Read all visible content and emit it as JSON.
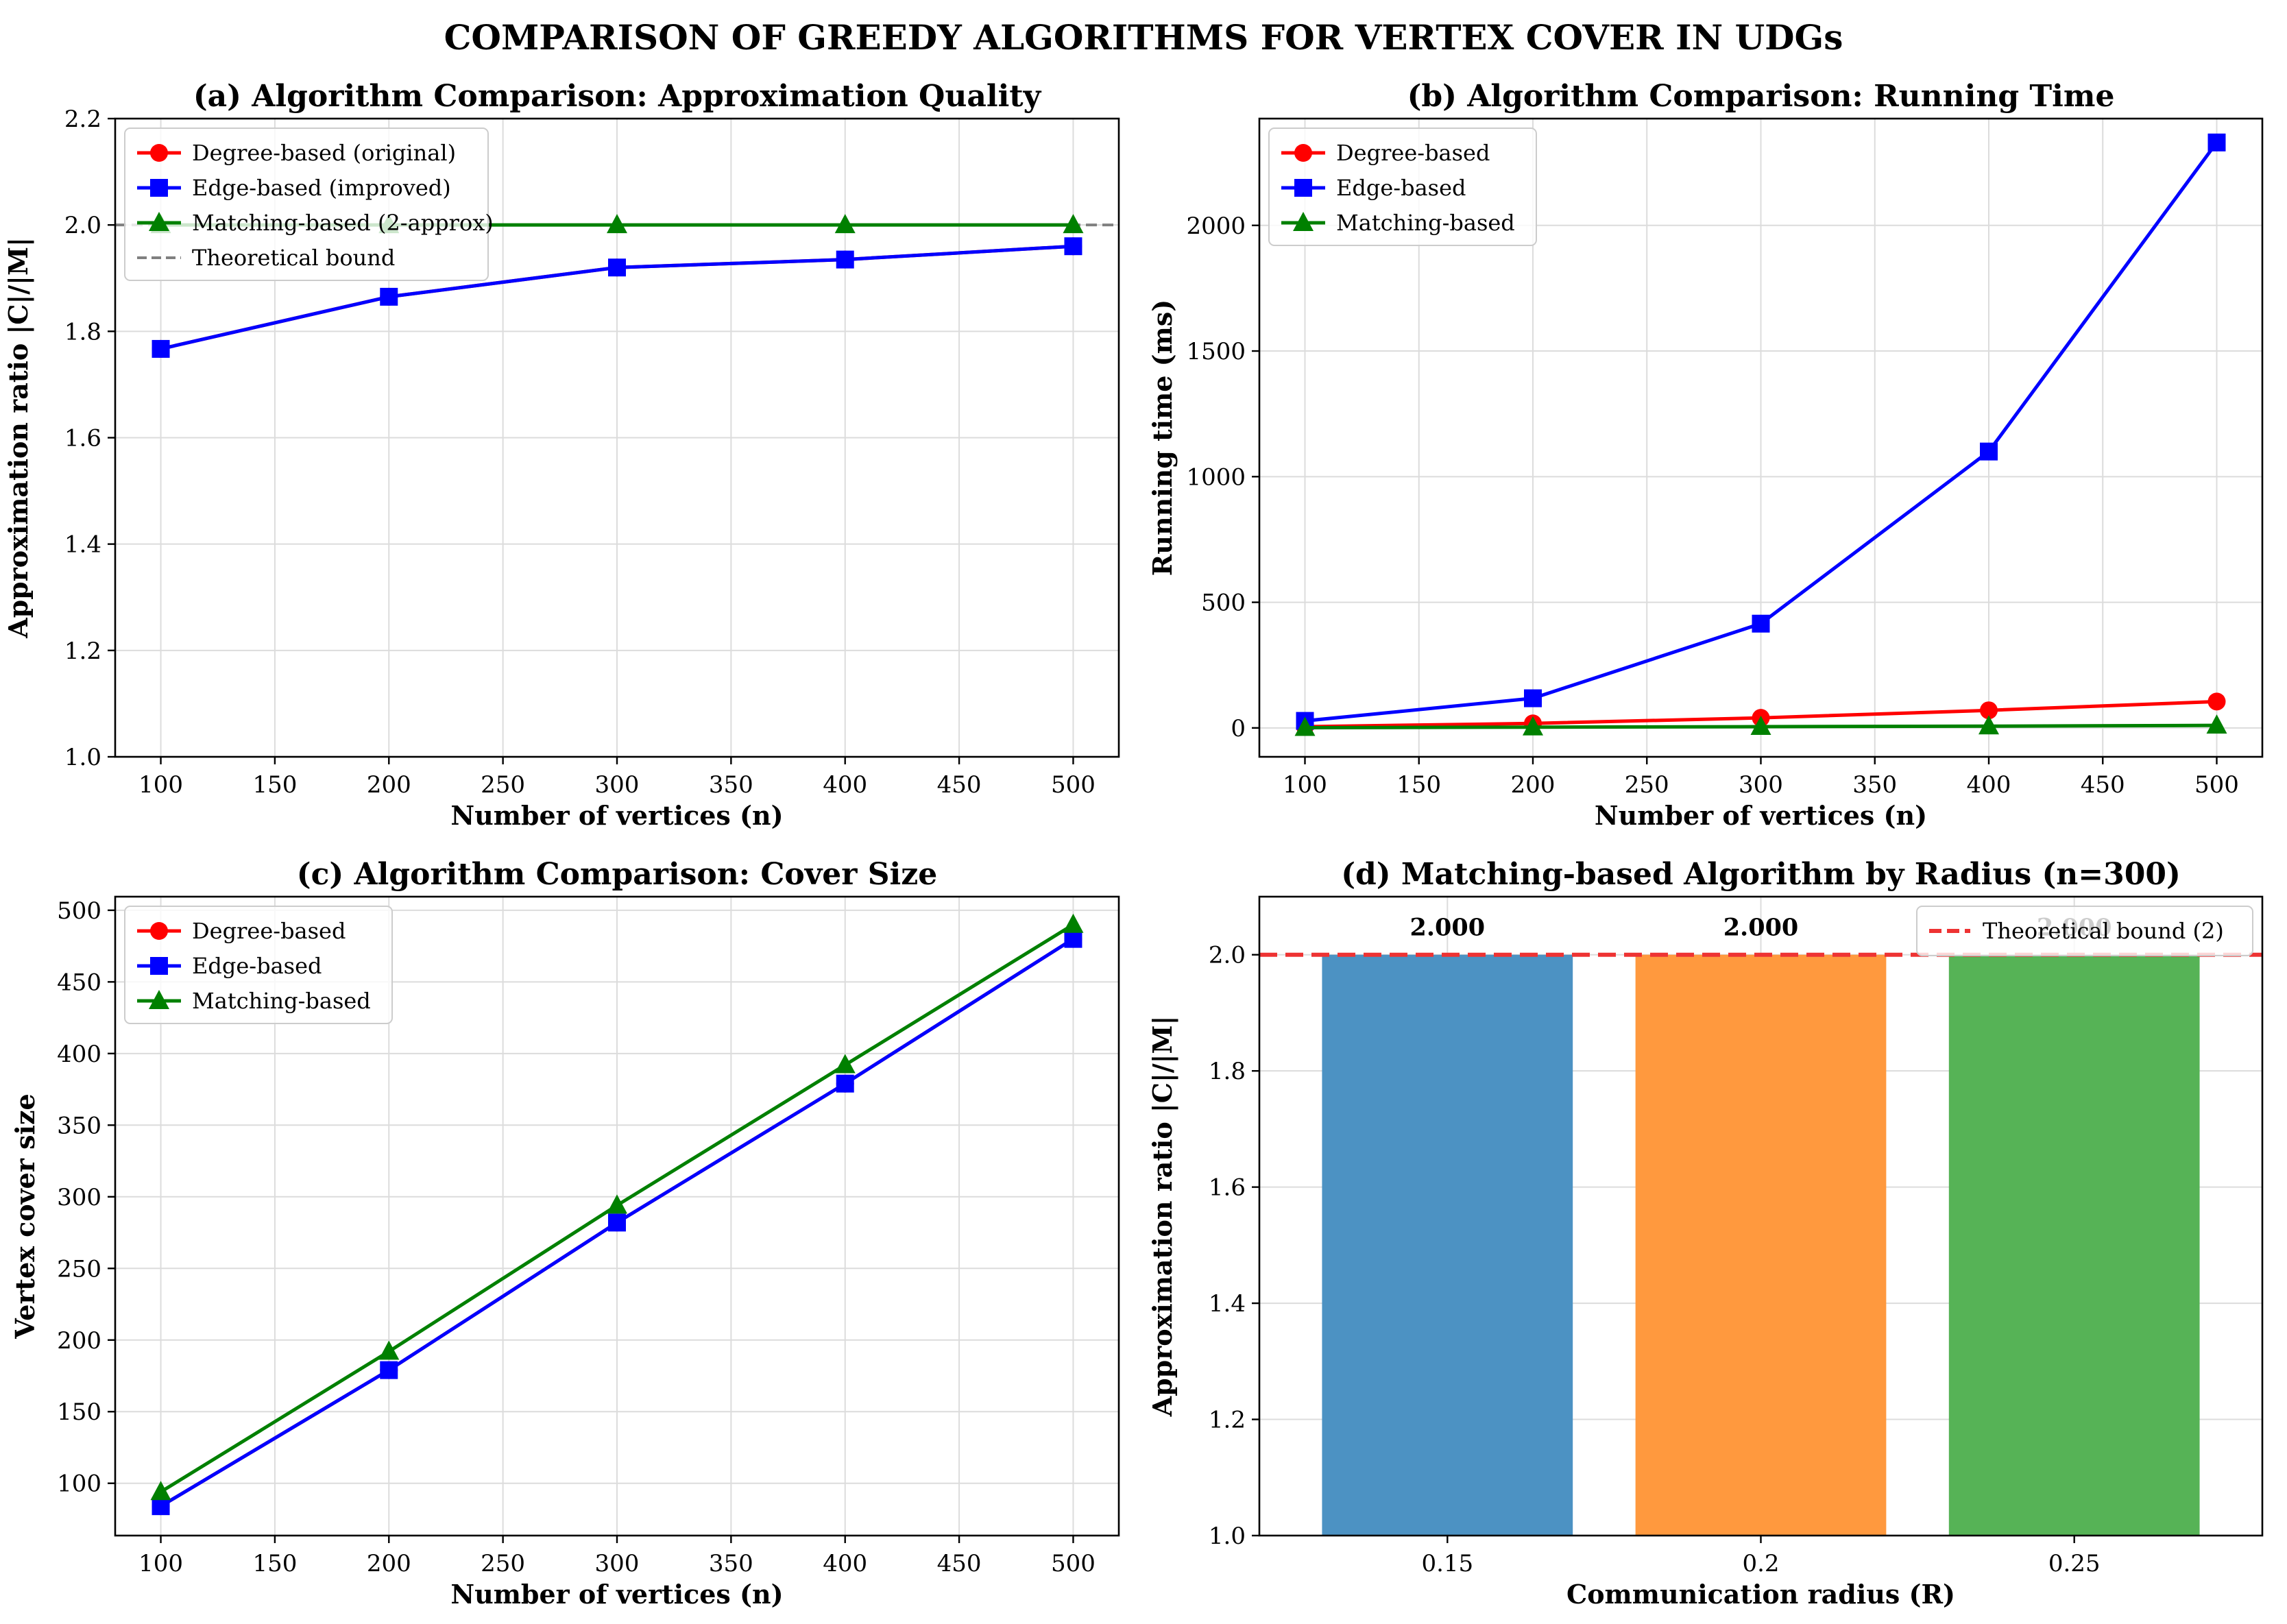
{
  "title": "COMPARISON OF GREEDY ALGORITHMS FOR VERTEX COVER IN UDGs",
  "colors": {
    "degree": "#ff0000",
    "edge": "#0000ff",
    "matching": "#008000",
    "bound": "#808080",
    "bound_red": "#ee3333",
    "bar_blue": "#4c92c3",
    "bar_orange": "#ff993e",
    "bar_green": "#56b356"
  },
  "chart_data": [
    {
      "id": "a",
      "type": "line",
      "title": "(a) Algorithm Comparison: Approximation Quality",
      "xlabel": "Number of vertices (n)",
      "ylabel": "Approximation ratio |C|/|M|",
      "xlim": [
        80,
        520
      ],
      "ylim": [
        1.0,
        2.2
      ],
      "xticks": [
        100,
        150,
        200,
        250,
        300,
        350,
        400,
        450,
        500
      ],
      "yticks": [
        1.0,
        1.2,
        1.4,
        1.6,
        1.8,
        2.0,
        2.2
      ],
      "ytick_labels": [
        "1.0",
        "1.2",
        "1.4",
        "1.6",
        "1.8",
        "2.0",
        "2.2"
      ],
      "grid": true,
      "legend": "upper-left",
      "x": [
        100,
        200,
        300,
        400,
        500
      ],
      "series": [
        {
          "name": "Degree-based (original)",
          "color": "#ff0000",
          "marker": "circle",
          "values": [
            1.767,
            1.865,
            1.92,
            1.935,
            1.96
          ]
        },
        {
          "name": "Edge-based (improved)",
          "color": "#0000ff",
          "marker": "square",
          "values": [
            1.767,
            1.865,
            1.92,
            1.935,
            1.96
          ]
        },
        {
          "name": "Matching-based (2-approx)",
          "color": "#008000",
          "marker": "triangle",
          "values": [
            2.0,
            2.0,
            2.0,
            2.0,
            2.0
          ]
        }
      ],
      "hline": {
        "name": "Theoretical bound",
        "value": 2.0,
        "color": "#808080"
      }
    },
    {
      "id": "b",
      "type": "line",
      "title": "(b) Algorithm Comparison: Running Time",
      "xlabel": "Number of vertices (n)",
      "ylabel": "Running time (ms)",
      "xlim": [
        80,
        520
      ],
      "ylim": [
        -115,
        2425
      ],
      "xticks": [
        100,
        150,
        200,
        250,
        300,
        350,
        400,
        450,
        500
      ],
      "yticks": [
        0,
        500,
        1000,
        1500,
        2000
      ],
      "ytick_labels": [
        "0",
        "500",
        "1000",
        "1500",
        "2000"
      ],
      "grid": true,
      "legend": "upper-left",
      "x": [
        100,
        200,
        300,
        400,
        500
      ],
      "series": [
        {
          "name": "Degree-based",
          "color": "#ff0000",
          "marker": "circle",
          "values": [
            5,
            18,
            40,
            70,
            105
          ]
        },
        {
          "name": "Edge-based",
          "color": "#0000ff",
          "marker": "square",
          "values": [
            28,
            118,
            415,
            1100,
            2330
          ]
        },
        {
          "name": "Matching-based",
          "color": "#008000",
          "marker": "triangle",
          "values": [
            1,
            3,
            5,
            7,
            10
          ]
        }
      ]
    },
    {
      "id": "c",
      "type": "line",
      "title": "(c) Algorithm Comparison: Cover Size",
      "xlabel": "Number of vertices (n)",
      "ylabel": "Vertex cover size",
      "xlim": [
        80,
        520
      ],
      "ylim": [
        63.5,
        509.5
      ],
      "xticks": [
        100,
        150,
        200,
        250,
        300,
        350,
        400,
        450,
        500
      ],
      "yticks": [
        100,
        150,
        200,
        250,
        300,
        350,
        400,
        450,
        500
      ],
      "ytick_labels": [
        "100",
        "150",
        "200",
        "250",
        "300",
        "350",
        "400",
        "450",
        "500"
      ],
      "grid": true,
      "legend": "upper-left",
      "x": [
        100,
        200,
        300,
        400,
        500
      ],
      "series": [
        {
          "name": "Degree-based",
          "color": "#ff0000",
          "marker": "circle",
          "values": [
            84,
            179,
            282,
            379,
            480
          ]
        },
        {
          "name": "Edge-based",
          "color": "#0000ff",
          "marker": "square",
          "values": [
            84,
            179,
            282,
            379,
            480
          ]
        },
        {
          "name": "Matching-based",
          "color": "#008000",
          "marker": "triangle",
          "values": [
            94,
            192,
            294,
            392,
            490
          ]
        }
      ]
    },
    {
      "id": "d",
      "type": "bar",
      "title": "(d) Matching-based Algorithm by Radius (n=300)",
      "xlabel": "Communication radius (R)",
      "ylabel": "Approximation ratio |C|/|M|",
      "ylim": [
        1.0,
        2.1
      ],
      "yticks": [
        1.0,
        1.2,
        1.4,
        1.6,
        1.8,
        2.0
      ],
      "ytick_labels": [
        "1.0",
        "1.2",
        "1.4",
        "1.6",
        "1.8",
        "2.0"
      ],
      "grid": true,
      "legend": "upper-right",
      "categories": [
        "0.15",
        "0.2",
        "0.25"
      ],
      "values": [
        2.0,
        2.0,
        2.0
      ],
      "value_labels": [
        "2.000",
        "2.000",
        "2.000"
      ],
      "bar_colors": [
        "#4c92c3",
        "#ff993e",
        "#56b356"
      ],
      "hline": {
        "name": "Theoretical bound (2)",
        "value": 2.0,
        "color": "#ee3333"
      }
    }
  ]
}
